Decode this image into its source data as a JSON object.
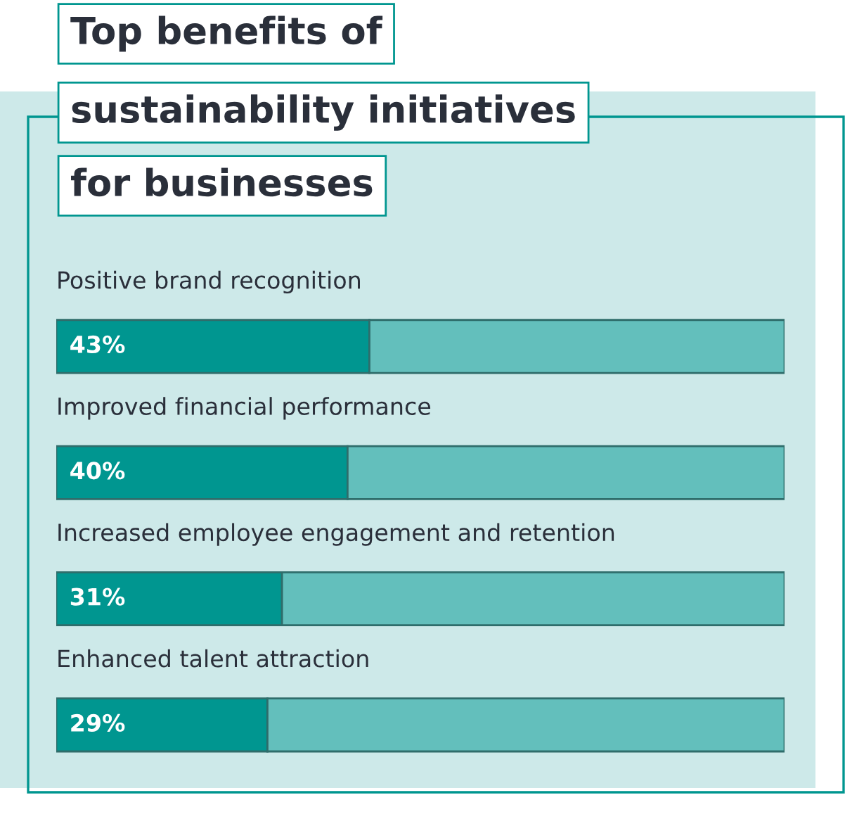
{
  "chart_data": {
    "type": "bar",
    "orientation": "horizontal",
    "stacked": true,
    "title": "Top benefits of\nsustainability initiatives\nfor businesses",
    "categories": [
      "Positive brand recognition",
      "Improved financial performance",
      "Increased employee engagement and retention",
      "Enhanced talent attraction"
    ],
    "series": [
      {
        "color": "#009690",
        "values": [
          43,
          40,
          31,
          29
        ],
        "value_labels": [
          "43%",
          "40%",
          "31%",
          "29%"
        ]
      },
      {
        "color": "#63bfbc",
        "values": [
          57,
          60,
          69,
          71
        ]
      }
    ],
    "xlim": [
      0,
      100
    ],
    "tick_labels": false,
    "legend": false
  }
}
